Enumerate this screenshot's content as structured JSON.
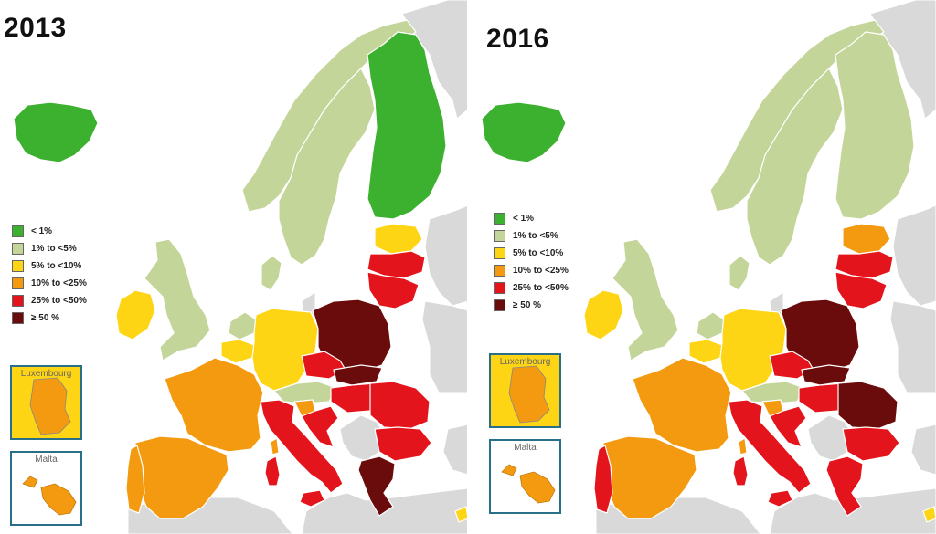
{
  "maps": [
    {
      "year": "2013",
      "insets": [
        {
          "title": "Luxembourg",
          "class_key": "c5to10"
        },
        {
          "title": "Malta",
          "class_key": "c10to25"
        }
      ],
      "countries": {
        "iceland": "lt1",
        "ireland": "c5to10",
        "uk": "c1to5",
        "norway": "c1to5",
        "sweden": "c1to5",
        "finland": "lt1",
        "estonia": "c5to10",
        "latvia": "c25to50",
        "lithuania": "c25to50",
        "denmark": "c1to5",
        "netherlands": "c1to5",
        "belgium": "c5to10",
        "germany": "c5to10",
        "poland": "ge50",
        "czech": "c25to50",
        "slovakia": "ge50",
        "austria": "c1to5",
        "hungary": "c25to50",
        "romania": "c25to50",
        "bulgaria": "c25to50",
        "france": "c10to25",
        "spain": "c10to25",
        "portugal": "c10to25",
        "italy": "c25to50",
        "slovenia": "c10to25",
        "croatia": "c25to50",
        "greece": "ge50",
        "cyprus": "c5to10",
        "sardinia": "c25to50",
        "sicily": "c25to50",
        "corsica": "c10to25"
      }
    },
    {
      "year": "2016",
      "insets": [
        {
          "title": "Luxembourg",
          "class_key": "c5to10"
        },
        {
          "title": "Malta",
          "class_key": "c10to25"
        }
      ],
      "countries": {
        "iceland": "lt1",
        "ireland": "c5to10",
        "uk": "c1to5",
        "norway": "c1to5",
        "sweden": "c1to5",
        "finland": "c1to5",
        "estonia": "c10to25",
        "latvia": "c25to50",
        "lithuania": "c25to50",
        "denmark": "c1to5",
        "netherlands": "c1to5",
        "belgium": "c5to10",
        "germany": "c5to10",
        "poland": "ge50",
        "czech": "c25to50",
        "slovakia": "ge50",
        "austria": "c1to5",
        "hungary": "c25to50",
        "romania": "ge50",
        "bulgaria": "c25to50",
        "france": "c10to25",
        "spain": "c10to25",
        "portugal": "c25to50",
        "italy": "c25to50",
        "slovenia": "c10to25",
        "croatia": "c25to50",
        "greece": "c25to50",
        "cyprus": "c5to10",
        "sardinia": "c25to50",
        "sicily": "c25to50",
        "corsica": "c10to25"
      }
    }
  ],
  "legend": [
    {
      "key": "lt1",
      "label": "< 1%",
      "color": "#3cb02f"
    },
    {
      "key": "c1to5",
      "label": "1% to <5%",
      "color": "#c4d59a"
    },
    {
      "key": "c5to10",
      "label": "5% to <10%",
      "color": "#fdd515"
    },
    {
      "key": "c10to25",
      "label": "10% to <25%",
      "color": "#f39a10"
    },
    {
      "key": "c25to50",
      "label": "25% to <50%",
      "color": "#e3141b"
    },
    {
      "key": "ge50",
      "label": "≥ 50 %",
      "color": "#6b0c0c"
    }
  ],
  "colors": {
    "no_data": "#d9d9d9",
    "border": "#ffffff",
    "sea": "#ffffff",
    "inset_frame": "#2a6f8a"
  }
}
